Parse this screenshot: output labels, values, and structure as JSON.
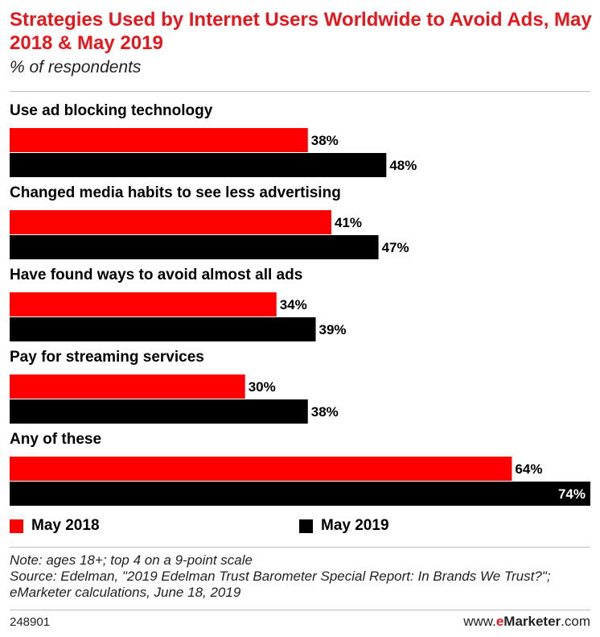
{
  "chart_data": {
    "type": "bar",
    "orientation": "horizontal",
    "title": "Strategies Used by Internet Users Worldwide to Avoid Ads, May 2018 & May 2019",
    "subtitle": "% of respondents",
    "categories": [
      "Use ad blocking technology",
      "Changed media habits to see less advertising",
      "Have found ways to avoid almost all ads",
      "Pay for streaming services",
      "Any of these"
    ],
    "series": [
      {
        "name": "May 2018",
        "color": "#ff0000",
        "values": [
          38,
          41,
          34,
          30,
          64
        ]
      },
      {
        "name": "May 2019",
        "color": "#000000",
        "values": [
          48,
          47,
          39,
          38,
          74
        ]
      }
    ],
    "value_suffix": "%",
    "xlim": [
      0,
      74
    ],
    "grid": false,
    "legend_position": "bottom",
    "notes": [
      "Note: ages 18+; top 4 on a 9-point scale",
      "Source: Edelman, \"2019 Edelman Trust Barometer Special Report: In Brands We Trust?\"; eMarketer calculations, June 18, 2019"
    ],
    "chart_id": "248901",
    "brand": {
      "prefix": "www.",
      "e": "e",
      "main": "Marketer",
      "suffix": ".com"
    }
  }
}
